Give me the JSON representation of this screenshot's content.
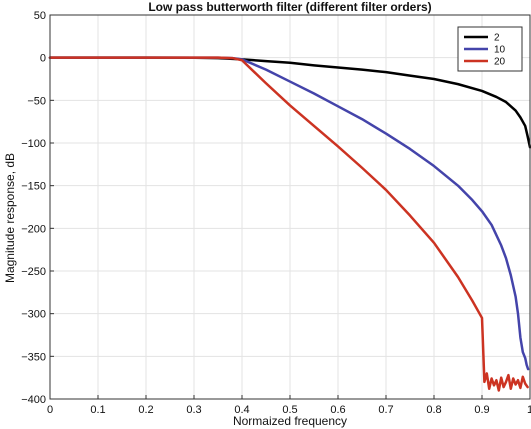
{
  "chart_data": {
    "type": "line",
    "title": "Low pass butterworth filter (different filter orders)",
    "xlabel": "Normaized frequency",
    "ylabel": "Magnitude response, dB",
    "xlim": [
      0,
      1
    ],
    "ylim": [
      -400,
      50
    ],
    "xticks": [
      "0",
      "0.1",
      "0.2",
      "0.3",
      "0.4",
      "0.5",
      "0.6",
      "0.7",
      "0.8",
      "0.9",
      "1"
    ],
    "yticks": [
      "50",
      "0",
      "−50",
      "−100",
      "−150",
      "−200",
      "−250",
      "−300",
      "−350",
      "−400"
    ],
    "grid": true,
    "legend_position": "top-right",
    "series": [
      {
        "name": "2",
        "color": "#000000",
        "x": [
          0,
          0.1,
          0.2,
          0.3,
          0.35,
          0.4,
          0.45,
          0.5,
          0.55,
          0.6,
          0.65,
          0.7,
          0.75,
          0.8,
          0.85,
          0.9,
          0.93,
          0.95,
          0.97,
          0.98,
          0.99,
          0.995,
          1.0
        ],
        "y": [
          0,
          0,
          0,
          -0.1,
          -0.5,
          -2,
          -4,
          -6,
          -9,
          -11.5,
          -14,
          -17,
          -21,
          -25,
          -31,
          -39,
          -46,
          -52,
          -62,
          -70,
          -80,
          -92,
          -105
        ]
      },
      {
        "name": "10",
        "color": "#4444aa",
        "x": [
          0,
          0.1,
          0.2,
          0.3,
          0.35,
          0.38,
          0.4,
          0.45,
          0.5,
          0.55,
          0.6,
          0.65,
          0.7,
          0.75,
          0.8,
          0.85,
          0.88,
          0.9,
          0.92,
          0.94,
          0.95,
          0.96,
          0.97,
          0.975,
          0.98,
          0.985,
          0.99,
          0.993,
          0.996
        ],
        "y": [
          0,
          0,
          0,
          0,
          0,
          -0.5,
          -2,
          -14,
          -28,
          -42,
          -57,
          -72,
          -89,
          -107,
          -127,
          -150,
          -167,
          -180,
          -196,
          -220,
          -235,
          -255,
          -280,
          -300,
          -328,
          -345,
          -352,
          -360,
          -365
        ]
      },
      {
        "name": "20",
        "color": "#cc3322",
        "x": [
          0,
          0.1,
          0.2,
          0.3,
          0.35,
          0.38,
          0.4,
          0.45,
          0.5,
          0.55,
          0.6,
          0.65,
          0.7,
          0.75,
          0.8,
          0.85,
          0.88,
          0.9,
          0.905,
          0.91,
          0.915,
          0.92,
          0.925,
          0.93,
          0.935,
          0.94,
          0.945,
          0.95,
          0.955,
          0.96,
          0.965,
          0.97,
          0.975,
          0.98,
          0.985,
          0.99,
          0.995
        ],
        "y": [
          0,
          0,
          0,
          0,
          0,
          -0.5,
          -3,
          -30,
          -56,
          -80,
          -104,
          -129,
          -155,
          -185,
          -217,
          -257,
          -285,
          -305,
          -380,
          -370,
          -388,
          -376,
          -384,
          -378,
          -390,
          -375,
          -386,
          -380,
          -372,
          -388,
          -376,
          -383,
          -378,
          -387,
          -374,
          -382,
          -386
        ]
      }
    ]
  }
}
